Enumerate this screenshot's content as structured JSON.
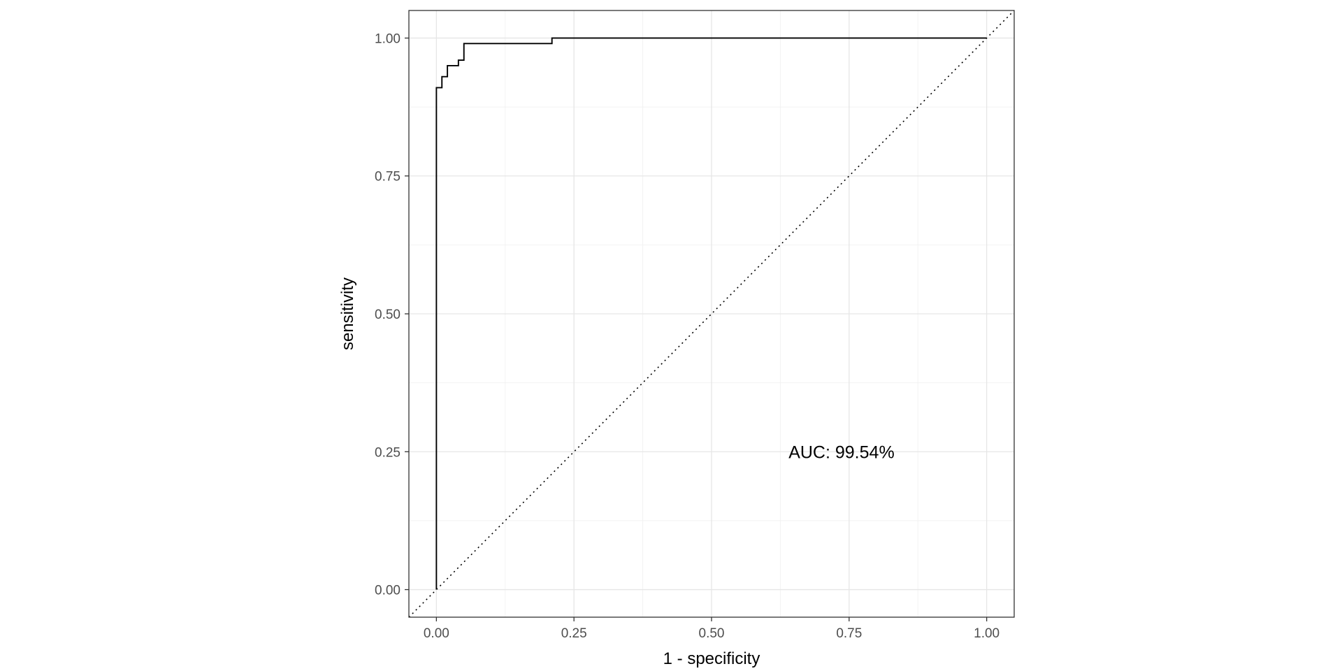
{
  "chart_data": {
    "type": "line",
    "title": "",
    "xlabel": "1 - specificity",
    "ylabel": "sensitivity",
    "xlim": [
      -0.05,
      1.05
    ],
    "ylim": [
      -0.05,
      1.05
    ],
    "x_ticks": [
      0.0,
      0.25,
      0.5,
      0.75,
      1.0
    ],
    "x_tick_labels": [
      "0.00",
      "0.25",
      "0.50",
      "0.75",
      "1.00"
    ],
    "y_ticks": [
      0.0,
      0.25,
      0.5,
      0.75,
      1.0
    ],
    "y_tick_labels": [
      "0.00",
      "0.25",
      "0.50",
      "0.75",
      "1.00"
    ],
    "grid": true,
    "series": [
      {
        "style": "step",
        "color": "#000000",
        "x": [
          0.0,
          0.0,
          0.0,
          0.01,
          0.01,
          0.02,
          0.02,
          0.04,
          0.04,
          0.05,
          0.05,
          0.21,
          0.21,
          1.0
        ],
        "y": [
          0.0,
          0.91,
          0.91,
          0.91,
          0.93,
          0.93,
          0.95,
          0.95,
          0.96,
          0.96,
          0.99,
          0.99,
          1.0,
          1.0
        ]
      },
      {
        "style": "dotted",
        "color": "#000000",
        "x": [
          -0.05,
          1.05
        ],
        "y": [
          -0.05,
          1.05
        ]
      }
    ],
    "annotations": [
      {
        "text": "AUC: 99.54%",
        "x": 0.64,
        "y": 0.25
      }
    ]
  }
}
